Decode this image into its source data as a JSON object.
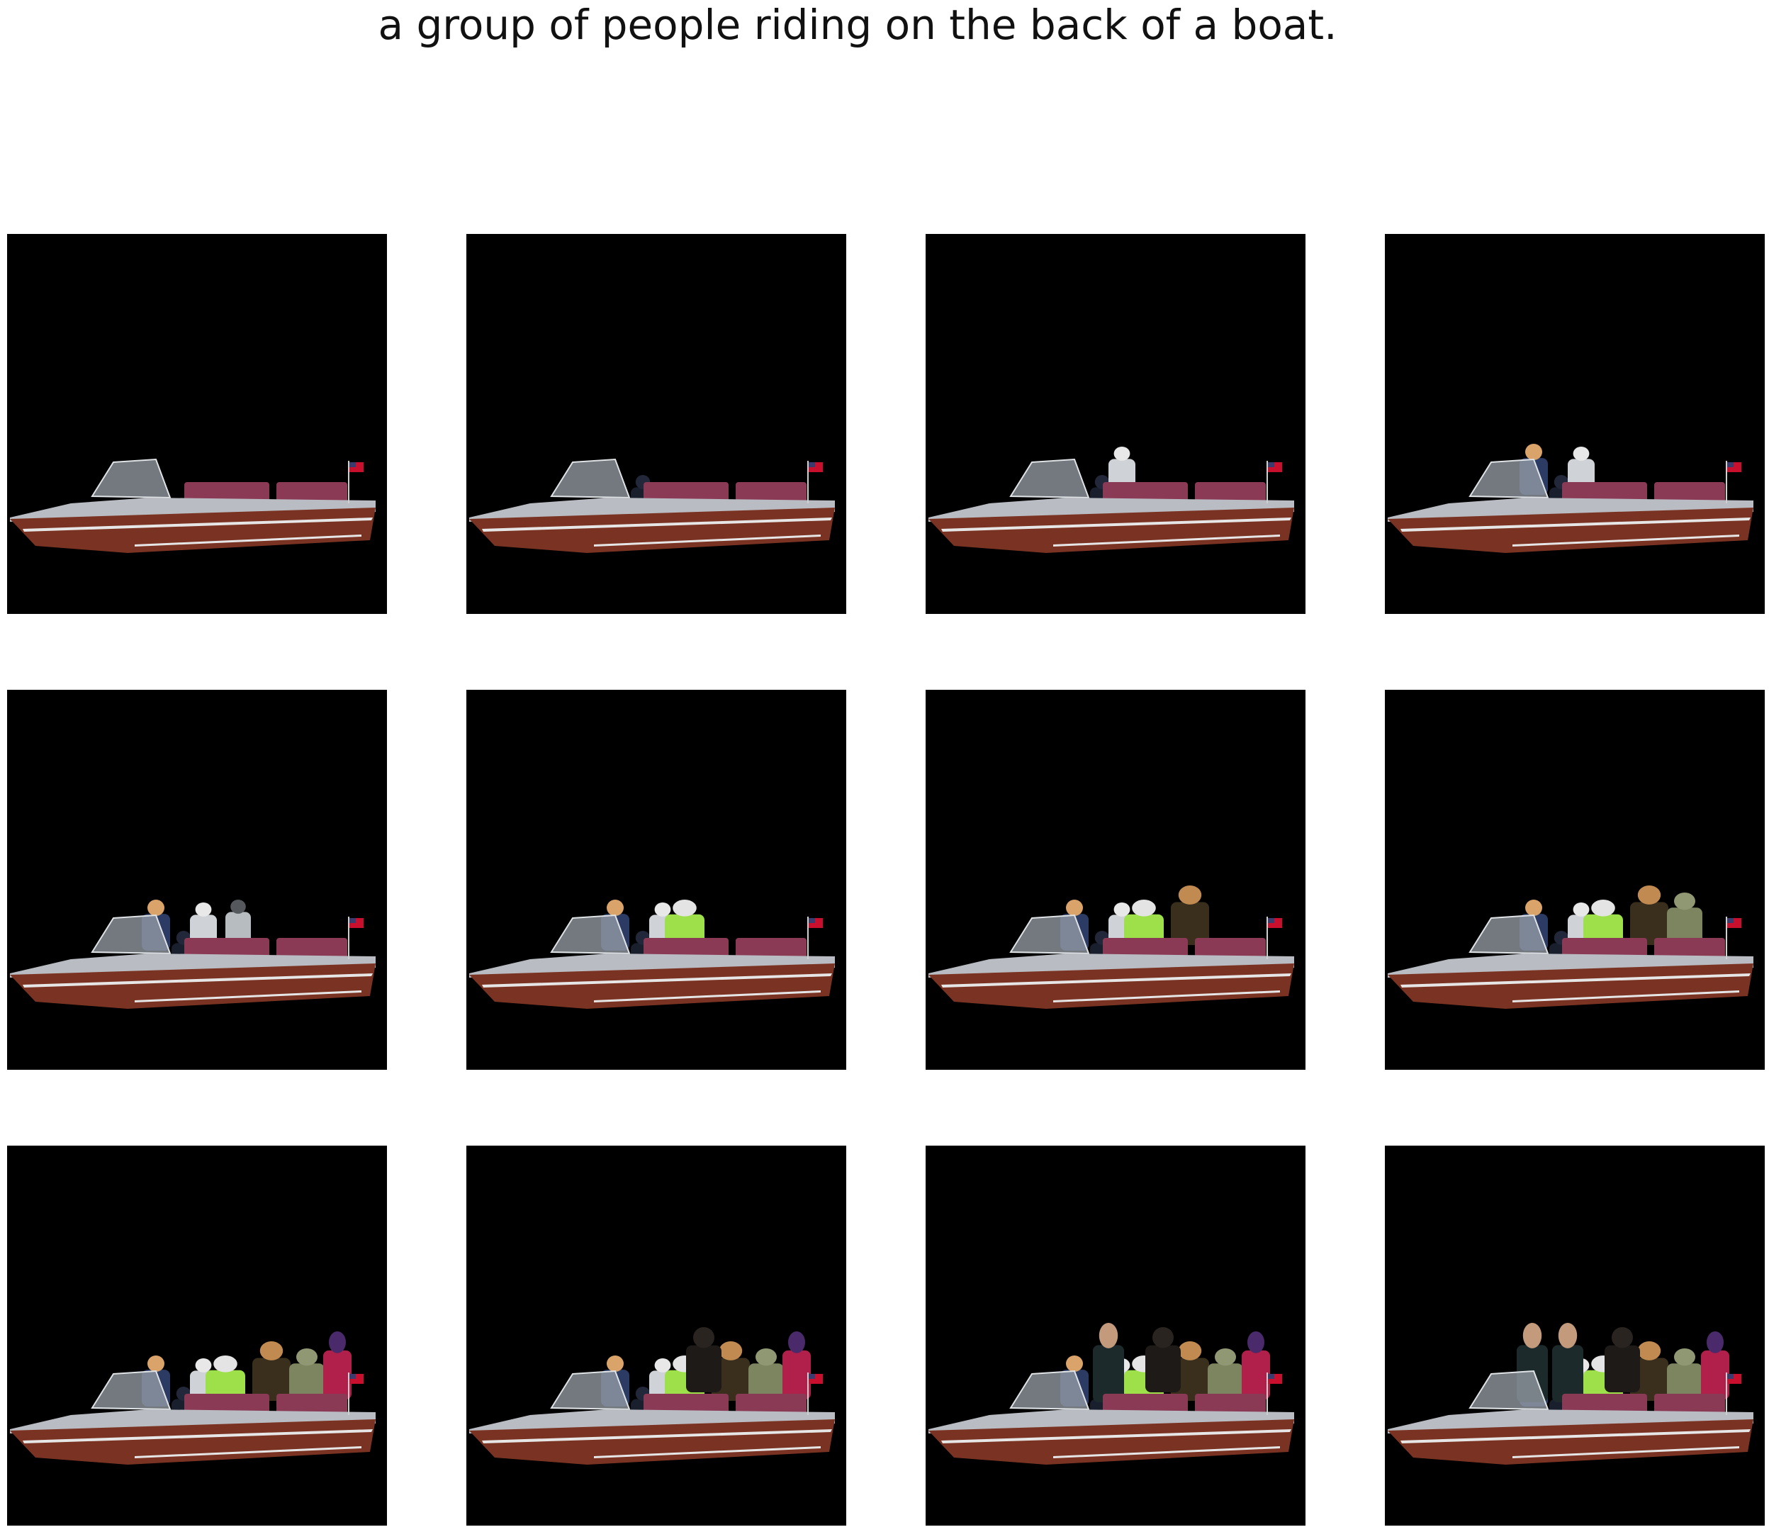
{
  "caption": "a group of people riding on the back of a boat.",
  "colors": {
    "panel_background": "#000000",
    "hull": "#7a3322",
    "hull_stripe": "#e6e6e6",
    "deck": "#b9bcc2",
    "upholstery": "#8a3a55",
    "flag_red": "#c8102e",
    "flag_blue": "#3c3b6e"
  },
  "panels": [
    {
      "people": []
    },
    {
      "people": [
        "dark-robot"
      ]
    },
    {
      "people": [
        "dark-robot",
        "white-figure"
      ]
    },
    {
      "people": [
        "dark-robot",
        "white-figure",
        "blue-shirt-man"
      ]
    },
    {
      "people": [
        "dark-robot",
        "white-figure",
        "blue-shirt-man",
        "gray-helmet-figure"
      ]
    },
    {
      "people": [
        "dark-robot",
        "white-figure",
        "blue-shirt-man",
        "green-vest-figure"
      ]
    },
    {
      "people": [
        "dark-robot",
        "white-figure",
        "blue-shirt-man",
        "green-vest-figure",
        "brown-officer"
      ]
    },
    {
      "people": [
        "dark-robot",
        "white-figure",
        "blue-shirt-man",
        "green-vest-figure",
        "brown-officer",
        "green-statue"
      ]
    },
    {
      "people": [
        "dark-robot",
        "white-figure",
        "blue-shirt-man",
        "green-vest-figure",
        "brown-officer",
        "green-statue",
        "red-figure"
      ]
    },
    {
      "people": [
        "dark-robot",
        "white-figure",
        "blue-shirt-man",
        "green-vest-figure",
        "brown-officer",
        "green-statue",
        "red-figure",
        "dark-hooded-figure"
      ]
    },
    {
      "people": [
        "dark-robot",
        "white-figure",
        "blue-shirt-man",
        "green-vest-figure",
        "brown-officer",
        "green-statue",
        "red-figure",
        "dark-hooded-figure",
        "suited-man"
      ]
    },
    {
      "people": [
        "dark-robot",
        "white-figure",
        "blue-shirt-man",
        "green-vest-figure",
        "brown-officer",
        "green-statue",
        "red-figure",
        "dark-hooded-figure",
        "suited-man",
        "suited-man-2"
      ]
    }
  ]
}
